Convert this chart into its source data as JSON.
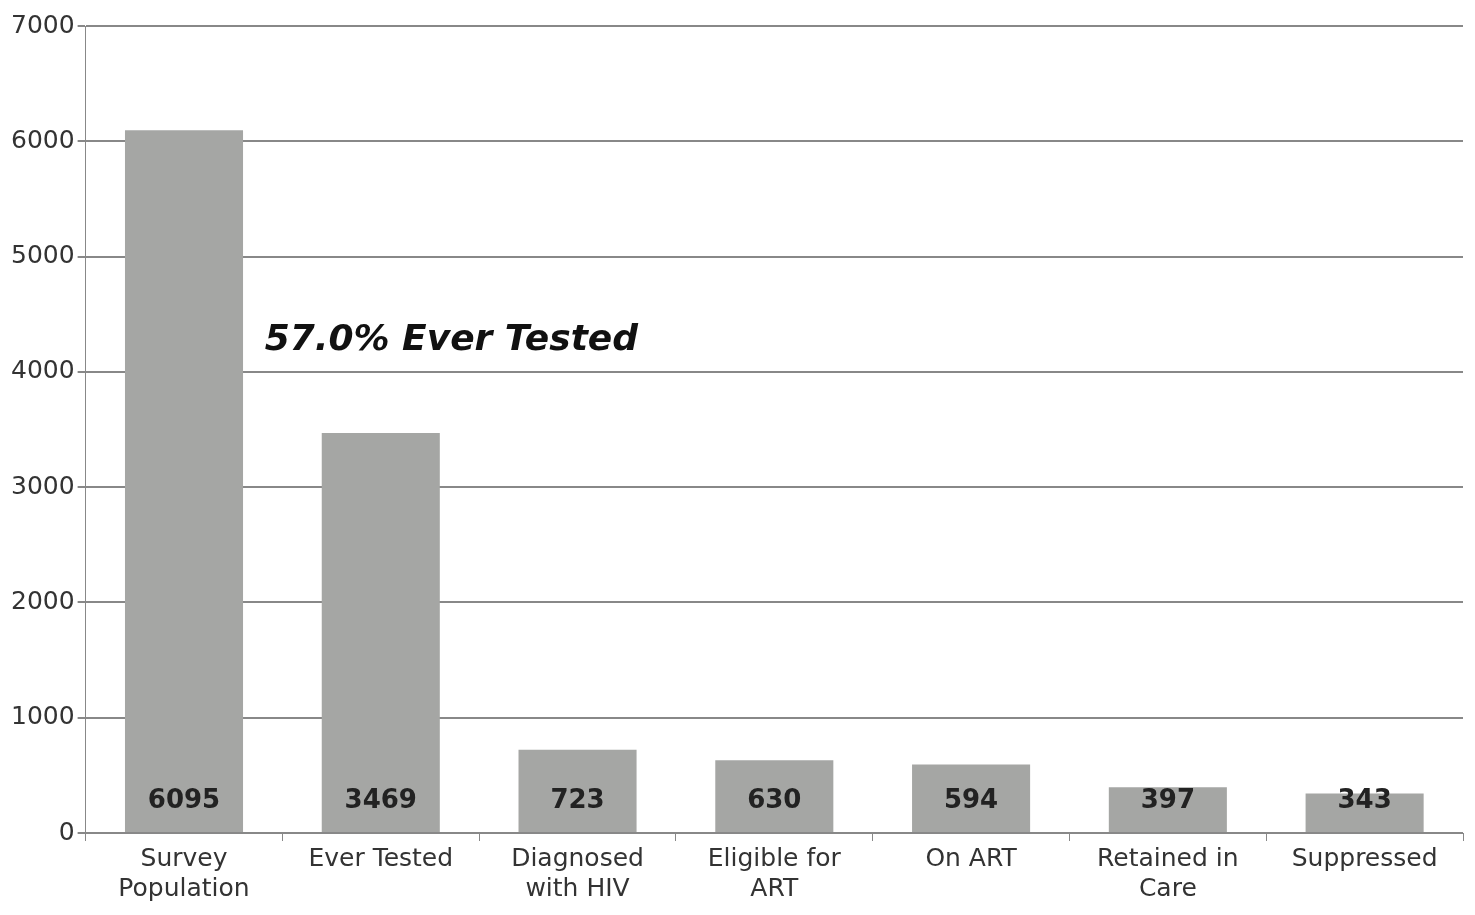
{
  "chart_data": {
    "type": "bar",
    "categories": [
      "Survey Population",
      "Ever Tested",
      "Diagnosed with HIV",
      "Eligible for ART",
      "On ART",
      "Retained in Care",
      "Suppressed"
    ],
    "values": [
      6095,
      3469,
      723,
      630,
      594,
      397,
      343
    ],
    "color": "#a5a6a4",
    "ylim": [
      0,
      7000
    ],
    "yticks": [
      0,
      1000,
      2000,
      3000,
      4000,
      5000,
      6000,
      7000
    ],
    "grid": "y",
    "legend": false,
    "data_labels": true,
    "annotations": [
      "57.0% Ever Tested"
    ]
  }
}
